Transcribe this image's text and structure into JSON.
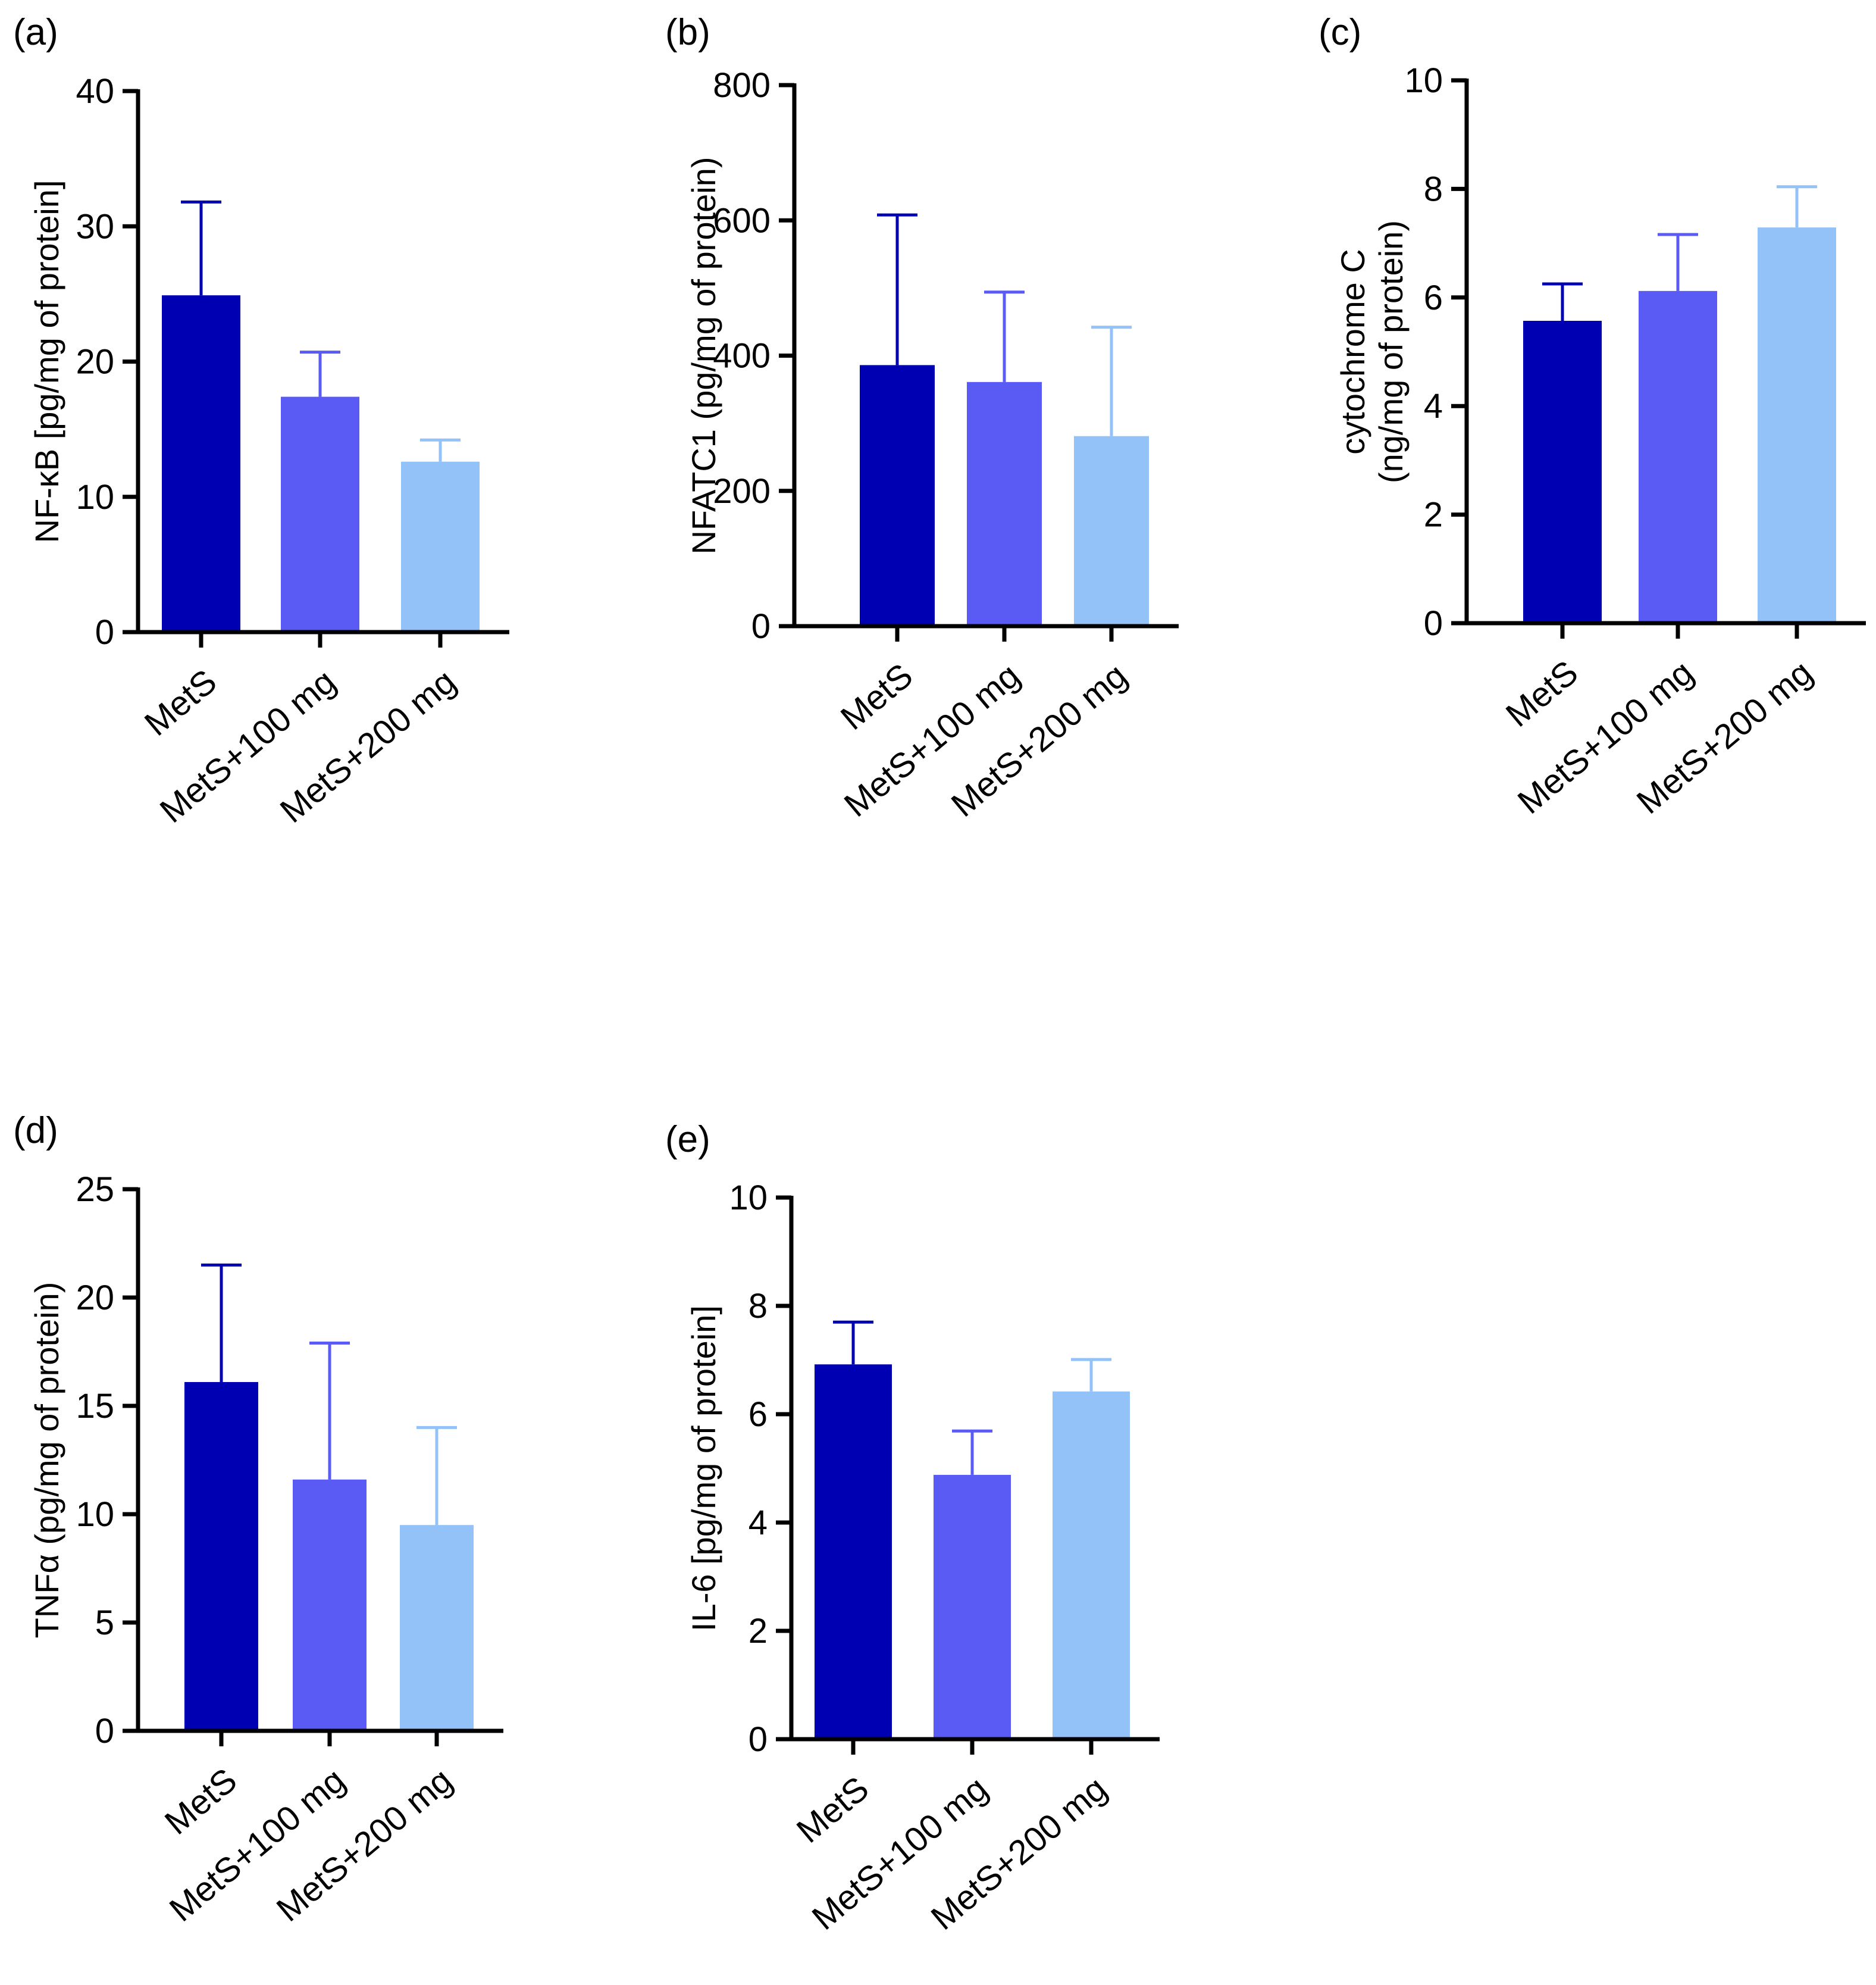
{
  "figure": {
    "colors": [
      "#0000b3",
      "#5a5af5",
      "#92c2f8"
    ]
  },
  "chart_data": [
    {
      "panel": "(a)",
      "type": "bar",
      "categories": [
        "MetS",
        "MetS+100 mg",
        "MetS+200 mg"
      ],
      "values": [
        24.9,
        17.4,
        12.6
      ],
      "errors": [
        6.9,
        3.3,
        1.6
      ],
      "ylabel_lines": [
        "NF-κB [pg/mg of protein]"
      ],
      "ylim": [
        0,
        40
      ],
      "yticks": [
        0,
        10,
        20,
        30,
        40
      ]
    },
    {
      "panel": "(b)",
      "type": "bar",
      "categories": [
        "MetS",
        "MetS+100 mg",
        "MetS+200 mg"
      ],
      "values": [
        386,
        361,
        281
      ],
      "errors": [
        222,
        133,
        161
      ],
      "ylabel_lines": [
        "NFATC1 (pg/mg of protein)"
      ],
      "ylim": [
        0,
        800
      ],
      "yticks": [
        0,
        200,
        400,
        600,
        800
      ]
    },
    {
      "panel": "(c)",
      "type": "bar",
      "categories": [
        "MetS",
        "MetS+100 mg",
        "MetS+200 mg"
      ],
      "values": [
        5.57,
        6.12,
        7.29
      ],
      "errors": [
        0.68,
        1.04,
        0.75
      ],
      "ylabel_lines": [
        "cytochrome C",
        "(ng/mg of protein)"
      ],
      "ylim": [
        0,
        10
      ],
      "yticks": [
        0,
        2,
        4,
        6,
        8,
        10
      ]
    },
    {
      "panel": "(d)",
      "type": "bar",
      "categories": [
        "MetS",
        "MetS+100 mg",
        "MetS+200 mg"
      ],
      "values": [
        16.1,
        11.6,
        9.5
      ],
      "errors": [
        5.4,
        6.3,
        4.5
      ],
      "ylabel_lines": [
        "TNFα (pg/mg of protein)"
      ],
      "ylim": [
        0,
        25
      ],
      "yticks": [
        0,
        5,
        10,
        15,
        20,
        25
      ]
    },
    {
      "panel": "(e)",
      "type": "bar",
      "categories": [
        "MetS",
        "MetS+100 mg",
        "MetS+200 mg"
      ],
      "values": [
        6.92,
        4.88,
        6.42
      ],
      "errors": [
        0.78,
        0.81,
        0.59
      ],
      "ylabel_lines": [
        "IL-6 [pg/mg of protein]"
      ],
      "ylim": [
        0,
        10
      ],
      "yticks": [
        0,
        2,
        4,
        6,
        8,
        10
      ]
    }
  ]
}
